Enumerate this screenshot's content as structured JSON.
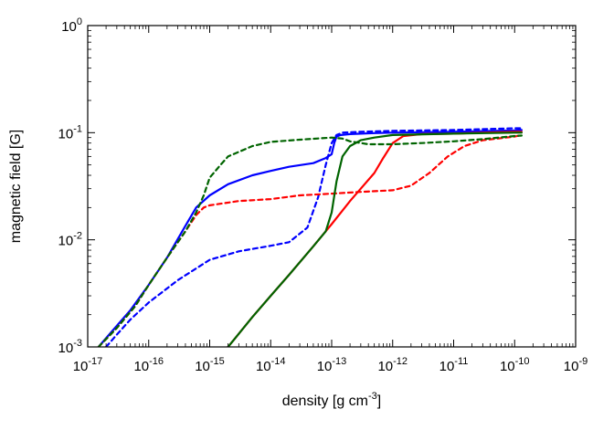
{
  "chart_data": {
    "type": "line",
    "xlabel": "density [g cm-3]",
    "ylabel": "magnetic field [G]",
    "xscale": "log",
    "yscale": "log",
    "xlim": [
      1e-17,
      1e-09
    ],
    "ylim": [
      0.001,
      1
    ],
    "grid": false,
    "x_ticks": [
      {
        "base": "10",
        "exp": "-17",
        "value": 1e-17
      },
      {
        "base": "10",
        "exp": "-16",
        "value": 1e-16
      },
      {
        "base": "10",
        "exp": "-15",
        "value": 1e-15
      },
      {
        "base": "10",
        "exp": "-14",
        "value": 1e-14
      },
      {
        "base": "10",
        "exp": "-13",
        "value": 1e-13
      },
      {
        "base": "10",
        "exp": "-12",
        "value": 1e-12
      },
      {
        "base": "10",
        "exp": "-11",
        "value": 1e-11
      },
      {
        "base": "10",
        "exp": "-10",
        "value": 1e-10
      },
      {
        "base": "10",
        "exp": "-9",
        "value": 1e-09
      }
    ],
    "y_ticks": [
      {
        "base": "10",
        "exp": "-3",
        "value": 0.001
      },
      {
        "base": "10",
        "exp": "-2",
        "value": 0.01
      },
      {
        "base": "10",
        "exp": "-1",
        "value": 0.1
      },
      {
        "base": "10",
        "exp": "0",
        "value": 1
      }
    ],
    "series": [
      {
        "color": "#0000ff",
        "dash": "solid",
        "x": [
          1.5e-17,
          2.5e-17,
          5e-17,
          1e-16,
          2e-16,
          4e-16,
          6e-16,
          1e-15,
          2e-15,
          5e-15,
          1e-14,
          2e-14,
          5e-14,
          8e-14,
          1e-13,
          1.1e-13,
          1.2e-13,
          1.4e-13,
          2e-13,
          5e-13,
          1e-12,
          1e-11,
          1e-10,
          1.3e-10
        ],
        "y": [
          0.001,
          0.0014,
          0.0022,
          0.0038,
          0.0068,
          0.0135,
          0.02,
          0.026,
          0.033,
          0.04,
          0.044,
          0.048,
          0.052,
          0.058,
          0.063,
          0.08,
          0.092,
          0.095,
          0.097,
          0.099,
          0.1,
          0.102,
          0.105,
          0.106
        ]
      },
      {
        "color": "#0000ff",
        "dash": "dashed",
        "x": [
          2e-17,
          3e-17,
          5e-17,
          1e-16,
          3e-16,
          1e-15,
          3e-15,
          1e-14,
          2e-14,
          4e-14,
          6e-14,
          8e-14,
          1e-13,
          1.2e-13,
          1.5e-13,
          3e-13,
          1e-12,
          1e-11,
          1e-10,
          1.3e-10
        ],
        "y": [
          0.001,
          0.0013,
          0.0018,
          0.0026,
          0.0042,
          0.0065,
          0.0078,
          0.0088,
          0.0095,
          0.013,
          0.025,
          0.05,
          0.08,
          0.095,
          0.1,
          0.102,
          0.104,
          0.106,
          0.11,
          0.11
        ]
      },
      {
        "color": "#ff0000",
        "dash": "solid",
        "x": [
          2e-15,
          5e-15,
          1e-14,
          2e-14,
          5e-14,
          1e-13,
          2e-13,
          3e-13,
          5e-13,
          7e-13,
          1e-12,
          1.5e-12,
          3e-12,
          1e-11,
          3e-11,
          1e-10,
          1.3e-10
        ],
        "y": [
          0.001,
          0.0019,
          0.003,
          0.0047,
          0.0087,
          0.014,
          0.023,
          0.03,
          0.042,
          0.058,
          0.08,
          0.093,
          0.097,
          0.098,
          0.1,
          0.102,
          0.102
        ]
      },
      {
        "color": "#ff0000",
        "dash": "dashed",
        "x": [
          1.5e-17,
          3e-17,
          6e-17,
          1e-16,
          2e-16,
          4e-16,
          6e-16,
          8e-16,
          1e-15,
          3e-15,
          1e-14,
          3e-14,
          1e-13,
          3e-13,
          1e-12,
          2e-12,
          4e-12,
          8e-12,
          1.5e-11,
          3e-11,
          1e-10,
          1.3e-10
        ],
        "y": [
          0.001,
          0.0015,
          0.0024,
          0.0038,
          0.0068,
          0.012,
          0.017,
          0.02,
          0.021,
          0.023,
          0.024,
          0.026,
          0.027,
          0.028,
          0.029,
          0.032,
          0.042,
          0.06,
          0.075,
          0.085,
          0.092,
          0.095
        ]
      },
      {
        "color": "#006400",
        "dash": "solid",
        "x": [
          2e-15,
          5e-15,
          1e-14,
          2e-14,
          5e-14,
          8e-14,
          1e-13,
          1.2e-13,
          1.5e-13,
          2e-13,
          3e-13,
          5e-13,
          1e-12,
          1e-11,
          1e-10,
          1.3e-10
        ],
        "y": [
          0.001,
          0.0019,
          0.003,
          0.0047,
          0.0087,
          0.012,
          0.018,
          0.035,
          0.06,
          0.075,
          0.085,
          0.09,
          0.095,
          0.098,
          0.1,
          0.1
        ]
      },
      {
        "color": "#006400",
        "dash": "dashed",
        "x": [
          1.5e-17,
          3e-17,
          6e-17,
          1e-16,
          2e-16,
          4e-16,
          6e-16,
          8e-16,
          1e-15,
          1.5e-15,
          2e-15,
          5e-15,
          1e-14,
          3e-14,
          1e-13,
          1.5e-13,
          2e-13,
          4e-13,
          1e-12,
          3e-12,
          1e-11,
          3e-11,
          1e-10,
          1.3e-10
        ],
        "y": [
          0.001,
          0.0015,
          0.0024,
          0.0038,
          0.0068,
          0.012,
          0.018,
          0.026,
          0.038,
          0.05,
          0.06,
          0.075,
          0.082,
          0.086,
          0.09,
          0.088,
          0.083,
          0.078,
          0.078,
          0.08,
          0.083,
          0.087,
          0.093,
          0.094
        ]
      }
    ]
  }
}
